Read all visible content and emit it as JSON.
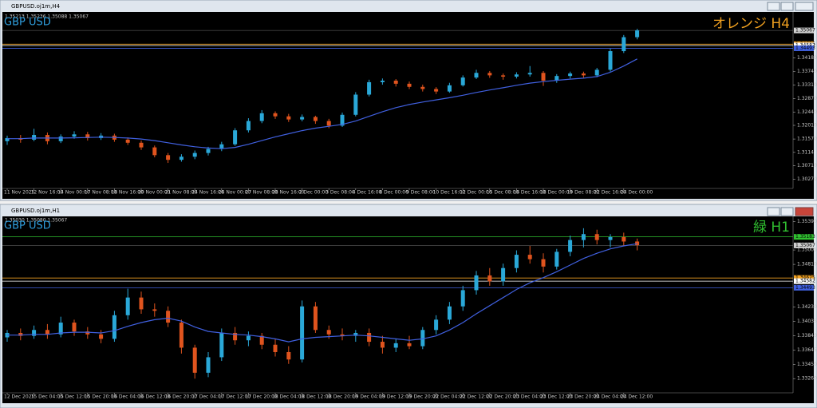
{
  "chart_data": [
    {
      "type": "candlestick",
      "window_title": "GBPUSD.oj1m,H4",
      "info": "1.35213 1.35236 1.35088 1.35067",
      "label_left": "GBP USD",
      "label_right": "オレンジ H4",
      "label_right_color": "#f0a020",
      "ylim": [
        1.3003,
        1.3561
      ],
      "yticks": [
        {
          "value": 1.3027,
          "label": "1.30270"
        },
        {
          "value": 1.3071,
          "label": "1.30710"
        },
        1.3114,
        {
          "value": 1.3157,
          "label": "1.31570"
        },
        {
          "value": 1.3201,
          "label": "1.32010"
        },
        {
          "value": 1.3244,
          "label": "1.32440"
        },
        {
          "value": 1.3287,
          "label": "1.32870"
        },
        {
          "value": 1.3331,
          "label": "1.33310"
        },
        {
          "value": 1.3374,
          "label": "1.33740"
        },
        {
          "value": 1.3418,
          "label": "1.34180"
        }
      ],
      "price": 1.35067,
      "hlines": [
        {
          "value": 1.34625,
          "color": "#f0a020"
        },
        {
          "value": 1.34582,
          "color": "#ffffff"
        },
        {
          "value": 1.34493,
          "color": "#4060e0"
        }
      ],
      "colors": {
        "up": "#2aa8d8",
        "down": "#e0541e"
      },
      "categories": [
        "11 Nov 2025",
        null,
        "12 Nov 16:00",
        null,
        "14 Nov 00:00",
        null,
        "17 Nov 08:00",
        null,
        "18 Nov 16:00",
        null,
        "20 Nov 00:00",
        null,
        "21 Nov 08:00",
        null,
        "24 Nov 16:00",
        null,
        "26 Nov 00:00",
        null,
        "27 Nov 08:00",
        null,
        "28 Nov 16:00",
        null,
        "2 Dec 00:00",
        null,
        "3 Dec 08:00",
        null,
        "4 Dec 16:00",
        null,
        "8 Dec 00:00",
        null,
        "9 Dec 08:00",
        null,
        "10 Dec 16:00",
        null,
        "12 Dec 00:00",
        null,
        "15 Dec 08:00",
        null,
        "16 Dec 16:00",
        null,
        "18 Dec 00:00",
        null,
        "19 Dec 08:00",
        null,
        "22 Dec 16:00",
        null,
        "24 Dec 00:00",
        null
      ],
      "ohlc": [
        [
          1.315,
          1.3168,
          1.3138,
          1.316
        ],
        [
          1.316,
          1.317,
          1.3145,
          1.3155
        ],
        [
          1.3155,
          1.319,
          1.315,
          1.317
        ],
        [
          1.317,
          1.3178,
          1.314,
          1.315
        ],
        [
          1.315,
          1.3172,
          1.3144,
          1.3165
        ],
        [
          1.3165,
          1.3182,
          1.3158,
          1.3172
        ],
        [
          1.3172,
          1.318,
          1.3152,
          1.316
        ],
        [
          1.316,
          1.3176,
          1.3154,
          1.3168
        ],
        [
          1.3168,
          1.3174,
          1.3148,
          1.3155
        ],
        [
          1.3155,
          1.3162,
          1.3138,
          1.3145
        ],
        [
          1.3145,
          1.3152,
          1.3122,
          1.313
        ],
        [
          1.313,
          1.3136,
          1.3098,
          1.3105
        ],
        [
          1.3105,
          1.3112,
          1.308,
          1.309
        ],
        [
          1.309,
          1.3108,
          1.3084,
          1.31
        ],
        [
          1.31,
          1.312,
          1.3092,
          1.3112
        ],
        [
          1.3112,
          1.3132,
          1.3104,
          1.3125
        ],
        [
          1.3125,
          1.3148,
          1.3118,
          1.314
        ],
        [
          1.314,
          1.3192,
          1.3135,
          1.3185
        ],
        [
          1.3185,
          1.3224,
          1.3178,
          1.3215
        ],
        [
          1.3215,
          1.325,
          1.3208,
          1.324
        ],
        [
          1.324,
          1.3246,
          1.3222,
          1.323
        ],
        [
          1.323,
          1.3238,
          1.3212,
          1.322
        ],
        [
          1.322,
          1.3236,
          1.3214,
          1.3228
        ],
        [
          1.3228,
          1.3232,
          1.3206,
          1.3215
        ],
        [
          1.3215,
          1.3222,
          1.3192,
          1.32
        ],
        [
          1.32,
          1.3242,
          1.3196,
          1.3235
        ],
        [
          1.3235,
          1.3308,
          1.323,
          1.33
        ],
        [
          1.33,
          1.3348,
          1.3294,
          1.334
        ],
        [
          1.334,
          1.3352,
          1.3332,
          1.3345
        ],
        [
          1.3345,
          1.335,
          1.3326,
          1.3335
        ],
        [
          1.3335,
          1.3342,
          1.3318,
          1.3325
        ],
        [
          1.3325,
          1.3332,
          1.331,
          1.3318
        ],
        [
          1.3318,
          1.3324,
          1.3302,
          1.331
        ],
        [
          1.331,
          1.3338,
          1.3306,
          1.333
        ],
        [
          1.333,
          1.3362,
          1.3326,
          1.3355
        ],
        [
          1.3355,
          1.338,
          1.335,
          1.337
        ],
        [
          1.337,
          1.3376,
          1.3354,
          1.3362
        ],
        [
          1.3362,
          1.3368,
          1.3348,
          1.3358
        ],
        [
          1.3358,
          1.3372,
          1.3352,
          1.3365
        ],
        [
          1.3365,
          1.3392,
          1.3358,
          1.337
        ],
        [
          1.337,
          1.3376,
          1.3328,
          1.3345
        ],
        [
          1.3345,
          1.3366,
          1.3338,
          1.336
        ],
        [
          1.336,
          1.3374,
          1.3352,
          1.3368
        ],
        [
          1.3368,
          1.3374,
          1.3354,
          1.3362
        ],
        [
          1.3362,
          1.3386,
          1.3356,
          1.338
        ],
        [
          1.338,
          1.3448,
          1.3374,
          1.344
        ],
        [
          1.344,
          1.3492,
          1.3434,
          1.3485
        ],
        [
          1.3485,
          1.3512,
          1.3478,
          1.3507
        ]
      ],
      "ma": {
        "color": "#4060e0",
        "values": [
          1.3158,
          1.3158,
          1.316,
          1.316,
          1.316,
          1.3161,
          1.3162,
          1.3163,
          1.3162,
          1.316,
          1.3157,
          1.3152,
          1.3145,
          1.3138,
          1.3132,
          1.3128,
          1.3126,
          1.313,
          1.314,
          1.3152,
          1.3164,
          1.3174,
          1.3184,
          1.3192,
          1.3198,
          1.3204,
          1.3215,
          1.323,
          1.3245,
          1.3258,
          1.3268,
          1.3276,
          1.3283,
          1.329,
          1.3298,
          1.3307,
          1.3315,
          1.3322,
          1.333,
          1.3337,
          1.3342,
          1.3346,
          1.335,
          1.3353,
          1.3358,
          1.3372,
          1.3392,
          1.3415
        ]
      }
    },
    {
      "type": "candlestick",
      "window_title": "GBPUSD.oj1m,H1",
      "info": "1.35030 1.35080 1.35067",
      "label_left": "GBP USD",
      "label_right": "緑 H1",
      "label_right_color": "#30c030",
      "ylim": [
        1.331,
        1.3545
      ],
      "yticks": [
        {
          "value": 1.3326,
          "label": "1.33260"
        },
        {
          "value": 1.3345,
          "label": "1.33450"
        },
        1.33645,
        {
          "value": 1.3384,
          "label": "1.33840"
        },
        1.34035,
        {
          "value": 1.3423,
          "label": "1.34230"
        },
        {
          "value": 1.3481,
          "label": "1.34810"
        },
        1.35005,
        {
          "value": 1.3539,
          "label": "1.35390"
        }
      ],
      "price": 1.35067,
      "hlines": [
        {
          "value": 1.35183,
          "color": "#30c030"
        },
        {
          "value": 1.34625,
          "color": "#f0a020"
        },
        {
          "value": 1.34582,
          "color": "#ffffff"
        },
        {
          "value": 1.34493,
          "color": "#4060e0"
        }
      ],
      "colors": {
        "up": "#2aa8d8",
        "down": "#e0541e"
      },
      "categories": [
        "12 Dec 2025",
        null,
        "15 Dec 04:00",
        null,
        "15 Dec 12:00",
        null,
        "15 Dec 20:00",
        null,
        "16 Dec 04:00",
        null,
        "16 Dec 12:00",
        null,
        "16 Dec 20:00",
        null,
        "17 Dec 04:00",
        null,
        "17 Dec 12:00",
        null,
        "17 Dec 20:00",
        null,
        "18 Dec 04:00",
        null,
        "18 Dec 12:00",
        null,
        "18 Dec 20:00",
        null,
        "19 Dec 04:00",
        null,
        "19 Dec 12:00",
        null,
        "19 Dec 20:00",
        null,
        "22 Dec 04:00",
        null,
        "22 Dec 12:00",
        null,
        "22 Dec 20:00",
        null,
        "23 Dec 04:00",
        null,
        "23 Dec 12:00",
        null,
        "23 Dec 20:00",
        null,
        "24 Dec 04:00",
        null,
        "24 Dec 12:00",
        null
      ],
      "ohlc": [
        [
          1.3382,
          1.3392,
          1.3376,
          1.3388
        ],
        [
          1.3388,
          1.3394,
          1.3378,
          1.3384
        ],
        [
          1.3384,
          1.3398,
          1.338,
          1.3392
        ],
        [
          1.3392,
          1.34,
          1.338,
          1.3386
        ],
        [
          1.3386,
          1.341,
          1.3382,
          1.3402
        ],
        [
          1.3402,
          1.3406,
          1.3384,
          1.339
        ],
        [
          1.339,
          1.3396,
          1.338,
          1.3386
        ],
        [
          1.3386,
          1.3392,
          1.3374,
          1.338
        ],
        [
          1.338,
          1.3418,
          1.3376,
          1.3412
        ],
        [
          1.3412,
          1.3448,
          1.3406,
          1.3436
        ],
        [
          1.3436,
          1.3444,
          1.3414,
          1.342
        ],
        [
          1.342,
          1.3428,
          1.341,
          1.3418
        ],
        [
          1.3418,
          1.3424,
          1.3396,
          1.3402
        ],
        [
          1.3402,
          1.3406,
          1.336,
          1.3368
        ],
        [
          1.3368,
          1.3372,
          1.3326,
          1.3334
        ],
        [
          1.3334,
          1.3362,
          1.3328,
          1.3355
        ],
        [
          1.3355,
          1.3394,
          1.335,
          1.3388
        ],
        [
          1.3388,
          1.3396,
          1.3372,
          1.3378
        ],
        [
          1.3378,
          1.339,
          1.337,
          1.3384
        ],
        [
          1.3384,
          1.3388,
          1.3366,
          1.3372
        ],
        [
          1.3372,
          1.338,
          1.3356,
          1.3362
        ],
        [
          1.3362,
          1.337,
          1.3346,
          1.3352
        ],
        [
          1.3352,
          1.3432,
          1.3348,
          1.3424
        ],
        [
          1.3424,
          1.343,
          1.3388,
          1.3392
        ],
        [
          1.3392,
          1.3398,
          1.338,
          1.3386
        ],
        [
          1.3386,
          1.3394,
          1.3378,
          1.3384
        ],
        [
          1.3384,
          1.3392,
          1.3376,
          1.3388
        ],
        [
          1.3388,
          1.3394,
          1.337,
          1.3376
        ],
        [
          1.3376,
          1.3384,
          1.336,
          1.3368
        ],
        [
          1.3368,
          1.338,
          1.3362,
          1.3374
        ],
        [
          1.3374,
          1.3384,
          1.3366,
          1.337
        ],
        [
          1.337,
          1.3396,
          1.3366,
          1.3392
        ],
        [
          1.3392,
          1.3412,
          1.3386,
          1.3406
        ],
        [
          1.3406,
          1.343,
          1.34,
          1.3424
        ],
        [
          1.3424,
          1.3452,
          1.3418,
          1.3446
        ],
        [
          1.3446,
          1.3472,
          1.344,
          1.3466
        ],
        [
          1.3466,
          1.3476,
          1.3452,
          1.3458
        ],
        [
          1.3458,
          1.3482,
          1.3452,
          1.3476
        ],
        [
          1.3476,
          1.35,
          1.347,
          1.3494
        ],
        [
          1.3494,
          1.3506,
          1.3482,
          1.3488
        ],
        [
          1.3488,
          1.3496,
          1.347,
          1.3478
        ],
        [
          1.3478,
          1.3502,
          1.3474,
          1.3498
        ],
        [
          1.3498,
          1.352,
          1.3492,
          1.3514
        ],
        [
          1.3514,
          1.353,
          1.3504,
          1.3522
        ],
        [
          1.3522,
          1.3528,
          1.3508,
          1.3514
        ],
        [
          1.3514,
          1.3522,
          1.3504,
          1.3518
        ],
        [
          1.3518,
          1.3524,
          1.3506,
          1.3512
        ],
        [
          1.3512,
          1.3516,
          1.35,
          1.3507
        ]
      ],
      "ma": {
        "color": "#4060e0",
        "values": [
          1.3385,
          1.3385,
          1.3386,
          1.3386,
          1.3388,
          1.3389,
          1.3389,
          1.3388,
          1.3391,
          1.3397,
          1.3402,
          1.3406,
          1.3408,
          1.3404,
          1.3396,
          1.339,
          1.3388,
          1.3386,
          1.3385,
          1.3383,
          1.338,
          1.3376,
          1.338,
          1.3382,
          1.3383,
          1.3384,
          1.3385,
          1.3384,
          1.3382,
          1.338,
          1.3378,
          1.338,
          1.3384,
          1.3392,
          1.3402,
          1.3414,
          1.3425,
          1.3436,
          1.3447,
          1.3456,
          1.3463,
          1.3471,
          1.348,
          1.3489,
          1.3496,
          1.3502,
          1.3506,
          1.3509
        ]
      }
    }
  ]
}
